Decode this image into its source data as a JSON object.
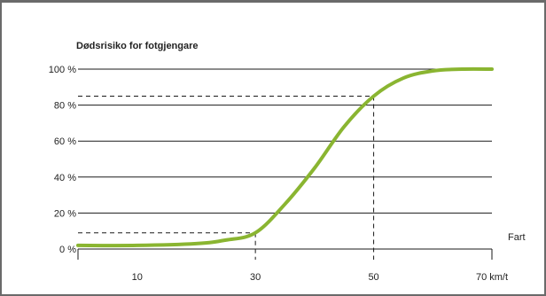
{
  "chart_data": {
    "type": "line",
    "title": "Dødsrisiko for fotgjengare",
    "xlabel": "Fart",
    "ylabel": "",
    "xlim": [
      0,
      70
    ],
    "ylim": [
      0,
      100
    ],
    "x_ticks": [
      {
        "value": 10,
        "label": "10"
      },
      {
        "value": 30,
        "label": "30"
      },
      {
        "value": 50,
        "label": "50"
      },
      {
        "value": 70,
        "label": "70 km/t"
      }
    ],
    "y_ticks": [
      {
        "value": 0,
        "label": "0 %"
      },
      {
        "value": 20,
        "label": "20 %"
      },
      {
        "value": 40,
        "label": "40 %"
      },
      {
        "value": 60,
        "label": "60 %"
      },
      {
        "value": 80,
        "label": "80 %"
      },
      {
        "value": 100,
        "label": "100 %"
      }
    ],
    "grid": "horizontal",
    "series": [
      {
        "color": "#8ab531",
        "x": [
          0,
          10,
          20,
          25,
          30,
          35,
          40,
          45,
          50,
          55,
          60,
          65,
          70
        ],
        "y": [
          2,
          2,
          3,
          5,
          9,
          25,
          45,
          68,
          85,
          95,
          99,
          100,
          100
        ]
      }
    ],
    "reference_lines": [
      {
        "x": 30,
        "y": 9
      },
      {
        "x": 50,
        "y": 85
      }
    ]
  }
}
